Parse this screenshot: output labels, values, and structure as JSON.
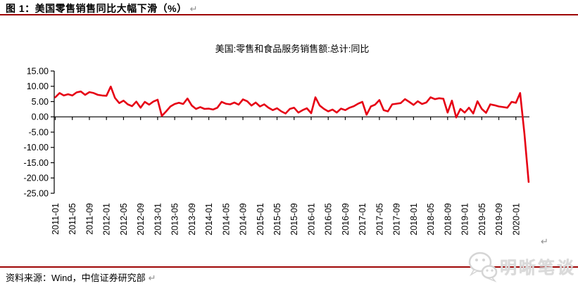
{
  "header": {
    "title": "图 1：美国零售销售同比大幅下滑（%）",
    "return_mark": "↵"
  },
  "chart": {
    "title": "美国:零售和食品服务销售额:总计:同比",
    "return_mark": "↵"
  },
  "footer": {
    "source": "资料来源：Wind，中信证券研究部",
    "return_mark": "↵"
  },
  "watermark": {
    "text": "明晰笔谈",
    "logo": "wechat-bubbles-icon"
  },
  "colors": {
    "line": "#e60014",
    "rule": "#9e0606",
    "axis": "#000000",
    "watermark": "#dadada",
    "return_mark": "#8f8f8f"
  },
  "chart_data": {
    "type": "line",
    "title": "美国:零售和食品服务销售额:总计:同比",
    "xlabel": "",
    "ylabel": "",
    "ylim": [
      -25,
      15
    ],
    "grid": false,
    "legend": "none",
    "y_tick_labels": [
      "15.00",
      "10.00",
      "5.00",
      "0.00",
      "-5.00",
      "-10.00",
      "-15.00",
      "-20.00",
      "-25.00"
    ],
    "y_ticks": [
      15,
      10,
      5,
      0,
      -5,
      -10,
      -15,
      -20,
      -25
    ],
    "x_tick_labels": [
      "2011-01",
      "2011-05",
      "2011-09",
      "2012-01",
      "2012-05",
      "2012-09",
      "2013-01",
      "2013-05",
      "2013-09",
      "2014-01",
      "2014-05",
      "2014-09",
      "2015-01",
      "2015-05",
      "2015-09",
      "2016-01",
      "2016-05",
      "2016-09",
      "2017-01",
      "2017-05",
      "2017-09",
      "2018-01",
      "2018-05",
      "2018-09",
      "2019-01",
      "2019-05",
      "2019-09",
      "2020-01"
    ],
    "x": [
      "2011-01",
      "2011-02",
      "2011-03",
      "2011-04",
      "2011-05",
      "2011-06",
      "2011-07",
      "2011-08",
      "2011-09",
      "2011-10",
      "2011-11",
      "2011-12",
      "2012-01",
      "2012-02",
      "2012-03",
      "2012-04",
      "2012-05",
      "2012-06",
      "2012-07",
      "2012-08",
      "2012-09",
      "2012-10",
      "2012-11",
      "2012-12",
      "2013-01",
      "2013-02",
      "2013-03",
      "2013-04",
      "2013-05",
      "2013-06",
      "2013-07",
      "2013-08",
      "2013-09",
      "2013-10",
      "2013-11",
      "2013-12",
      "2014-01",
      "2014-02",
      "2014-03",
      "2014-04",
      "2014-05",
      "2014-06",
      "2014-07",
      "2014-08",
      "2014-09",
      "2014-10",
      "2014-11",
      "2014-12",
      "2015-01",
      "2015-02",
      "2015-03",
      "2015-04",
      "2015-05",
      "2015-06",
      "2015-07",
      "2015-08",
      "2015-09",
      "2015-10",
      "2015-11",
      "2015-12",
      "2016-01",
      "2016-02",
      "2016-03",
      "2016-04",
      "2016-05",
      "2016-06",
      "2016-07",
      "2016-08",
      "2016-09",
      "2016-10",
      "2016-11",
      "2016-12",
      "2017-01",
      "2017-02",
      "2017-03",
      "2017-04",
      "2017-05",
      "2017-06",
      "2017-07",
      "2017-08",
      "2017-09",
      "2017-10",
      "2017-11",
      "2017-12",
      "2018-01",
      "2018-02",
      "2018-03",
      "2018-04",
      "2018-05",
      "2018-06",
      "2018-07",
      "2018-08",
      "2018-09",
      "2018-10",
      "2018-11",
      "2018-12",
      "2019-01",
      "2019-02",
      "2019-03",
      "2019-04",
      "2019-05",
      "2019-06",
      "2019-07",
      "2019-08",
      "2019-09",
      "2019-10",
      "2019-11",
      "2019-12",
      "2020-01",
      "2020-02",
      "2020-03",
      "2020-04"
    ],
    "values": [
      6.4,
      7.8,
      7.0,
      7.4,
      7.0,
      8.0,
      8.3,
      7.2,
      8.1,
      7.8,
      7.2,
      7.0,
      6.9,
      9.9,
      6.2,
      4.5,
      5.3,
      4.1,
      3.5,
      5.0,
      3.0,
      4.9,
      4.0,
      5.0,
      5.6,
      0.3,
      1.8,
      3.4,
      4.2,
      4.6,
      4.2,
      6.0,
      3.7,
      2.6,
      3.2,
      2.6,
      2.7,
      2.4,
      3.0,
      4.9,
      4.3,
      4.1,
      4.7,
      4.0,
      5.7,
      5.1,
      3.7,
      4.7,
      3.4,
      4.1,
      3.0,
      2.2,
      2.8,
      1.8,
      1.1,
      2.6,
      3.0,
      1.4,
      2.2,
      2.8,
      1.2,
      6.4,
      3.7,
      2.6,
      1.8,
      2.4,
      1.4,
      2.7,
      2.2,
      3.0,
      3.5,
      4.3,
      4.9,
      0.7,
      3.4,
      4.0,
      5.5,
      2.2,
      1.8,
      4.1,
      4.3,
      4.5,
      5.8,
      4.9,
      3.9,
      5.1,
      4.2,
      4.7,
      6.4,
      5.8,
      6.1,
      5.9,
      1.4,
      5.3,
      -0.2,
      2.6,
      1.4,
      3.0,
      1.1,
      5.1,
      2.6,
      1.3,
      4.1,
      3.8,
      3.4,
      3.2,
      3.0,
      4.9,
      4.6,
      7.8,
      -5.5,
      -21.3
    ]
  }
}
